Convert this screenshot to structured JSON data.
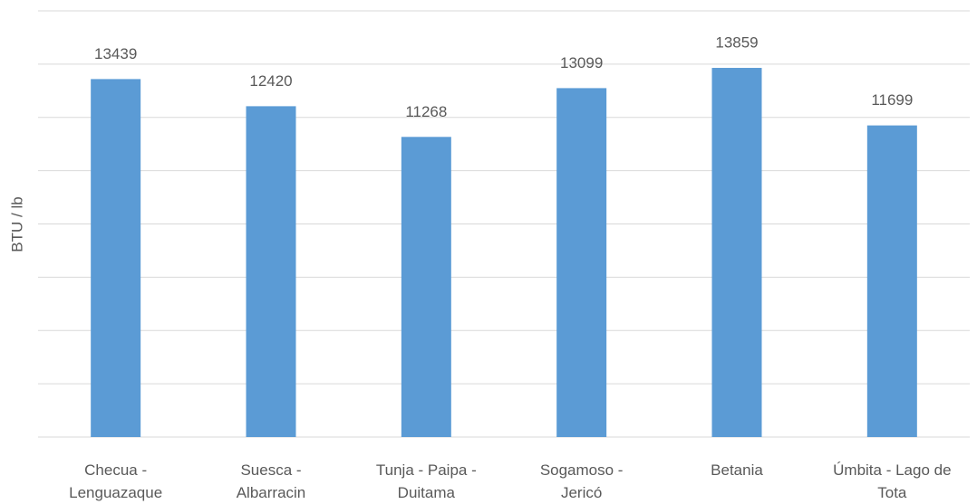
{
  "chart_data": {
    "type": "bar",
    "y_label": "BTU / lb",
    "categories": [
      "Checua -\nLenguazaque",
      "Suesca -\nAlbarracin",
      "Tunja - Paipa -\nDuitama",
      "Sogamoso -\nJericó",
      "Betania",
      "Úmbita - Lago de\nTota"
    ],
    "values": [
      13439,
      12420,
      11268,
      13099,
      13859,
      11699
    ],
    "color": "#5b9bd5",
    "ylim": [
      0,
      16000
    ],
    "yticks": [
      0,
      2000,
      4000,
      6000,
      8000,
      10000,
      12000,
      14000,
      16000
    ],
    "grid": true
  }
}
